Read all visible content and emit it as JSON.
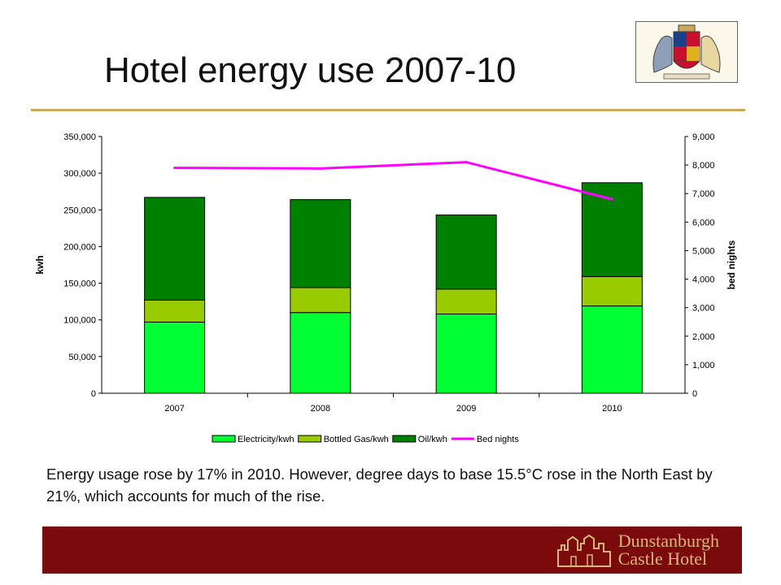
{
  "slide": {
    "title": "Hotel energy use 2007-10",
    "caption": "Energy usage rose by 17% in 2010. However, degree days to base 15.5°C rose in the North East by 21%, which accounts for much of the rise.",
    "footer_logo": {
      "line1": "Dunstanburgh",
      "line2": "Castle Hotel"
    }
  },
  "colors": {
    "accent_rule": "#c9a85a",
    "footer_bg": "#7a0a0c",
    "electricity": "#00ff33",
    "bottled_gas": "#99cc00",
    "oil": "#008000",
    "bed_nights": "#ff00ff"
  },
  "chart_data": {
    "type": "bar",
    "stacked": true,
    "categories": [
      "2007",
      "2008",
      "2009",
      "2010"
    ],
    "series": [
      {
        "name": "Electricity/kwh",
        "values": [
          97000,
          110000,
          108000,
          119000
        ],
        "color": "#00ff33",
        "axis": "left"
      },
      {
        "name": "Bottled Gas/kwh",
        "values": [
          30000,
          34000,
          34000,
          40000
        ],
        "color": "#99cc00",
        "axis": "left"
      },
      {
        "name": "Oil/kwh",
        "values": [
          140000,
          120000,
          101000,
          128000
        ],
        "color": "#008000",
        "axis": "left"
      }
    ],
    "line_series": {
      "name": "Bed nights",
      "type": "line",
      "axis": "right",
      "color": "#ff00ff",
      "values": [
        7900,
        7880,
        8100,
        6800
      ]
    },
    "ylabel": "kwh",
    "y2label": "bed nights",
    "ylim": [
      0,
      350000
    ],
    "y2lim": [
      0,
      9000
    ],
    "yticks": [
      "0",
      "50,000",
      "100,000",
      "150,000",
      "200,000",
      "250,000",
      "300,000",
      "350,000"
    ],
    "y2ticks": [
      "0",
      "1,000",
      "2,000",
      "3,000",
      "4,000",
      "5,000",
      "6,000",
      "7,000",
      "8,000",
      "9,000"
    ],
    "legend_position": "bottom",
    "grid": false
  }
}
